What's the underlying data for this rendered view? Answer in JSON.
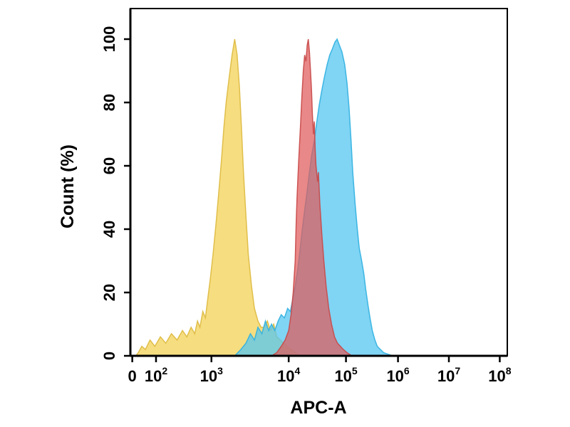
{
  "figure": {
    "background": "#ffffff",
    "axis_color": "#000000"
  },
  "chart_data": {
    "type": "area",
    "subtype": "flow-cytometry-histogram-overlay",
    "title": "",
    "xlabel": "APC-A",
    "ylabel": "Count  (%)",
    "x_scale": "biexponential-log",
    "ylim": [
      0,
      100
    ],
    "grid": false,
    "legend": "none",
    "y_ticks": [
      0,
      20,
      40,
      60,
      80,
      100
    ],
    "x_ticks": [
      {
        "label": "0",
        "value": 0,
        "frac": 0.005
      },
      {
        "base": "10",
        "exp": "2",
        "value": 100,
        "frac": 0.068
      },
      {
        "base": "10",
        "exp": "3",
        "value": 1000,
        "frac": 0.215
      },
      {
        "base": "10",
        "exp": "4",
        "value": 10000,
        "frac": 0.42
      },
      {
        "base": "10",
        "exp": "5",
        "value": 100000,
        "frac": 0.572
      },
      {
        "base": "10",
        "exp": "6",
        "value": 1000000,
        "frac": 0.71
      },
      {
        "base": "10",
        "exp": "7",
        "value": 10000000,
        "frac": 0.845
      },
      {
        "base": "10",
        "exp": "8",
        "value": 100000000,
        "frac": 0.98
      }
    ],
    "series": [
      {
        "name": "yellow-histogram",
        "peak_x": 2000,
        "fill": "#F3D45C",
        "stroke": "#DDB93E",
        "opacity": 0.78,
        "points": [
          [
            15,
            0
          ],
          [
            25,
            1
          ],
          [
            40,
            3
          ],
          [
            55,
            2
          ],
          [
            75,
            5
          ],
          [
            95,
            3
          ],
          [
            120,
            6
          ],
          [
            150,
            4
          ],
          [
            190,
            7
          ],
          [
            240,
            5
          ],
          [
            300,
            8
          ],
          [
            360,
            6
          ],
          [
            430,
            9
          ],
          [
            500,
            7
          ],
          [
            560,
            11
          ],
          [
            620,
            9
          ],
          [
            700,
            14
          ],
          [
            780,
            12
          ],
          [
            860,
            18
          ],
          [
            950,
            24
          ],
          [
            1050,
            32
          ],
          [
            1150,
            42
          ],
          [
            1250,
            52
          ],
          [
            1350,
            62
          ],
          [
            1450,
            72
          ],
          [
            1550,
            80
          ],
          [
            1700,
            88
          ],
          [
            1850,
            95
          ],
          [
            2000,
            100
          ],
          [
            2150,
            95
          ],
          [
            2300,
            85
          ],
          [
            2450,
            72
          ],
          [
            2600,
            58
          ],
          [
            2800,
            44
          ],
          [
            3000,
            32
          ],
          [
            3300,
            22
          ],
          [
            3600,
            15
          ],
          [
            4000,
            11
          ],
          [
            4400,
            9
          ],
          [
            4800,
            9
          ],
          [
            5300,
            11
          ],
          [
            5800,
            8
          ],
          [
            6400,
            10
          ],
          [
            7000,
            6
          ],
          [
            7800,
            5
          ],
          [
            8600,
            4
          ],
          [
            9500,
            3
          ],
          [
            11000,
            2
          ],
          [
            13000,
            1
          ],
          [
            16000,
            0
          ]
        ]
      },
      {
        "name": "blue-histogram",
        "peak_x": 70000,
        "fill": "#55C6F0",
        "stroke": "#2FB0E0",
        "opacity": 0.75,
        "points": [
          [
            2000,
            0
          ],
          [
            2400,
            2
          ],
          [
            2800,
            4
          ],
          [
            3200,
            7
          ],
          [
            3600,
            5
          ],
          [
            4000,
            9
          ],
          [
            4500,
            7
          ],
          [
            5000,
            11
          ],
          [
            5500,
            8
          ],
          [
            6000,
            10
          ],
          [
            6600,
            8
          ],
          [
            7300,
            11
          ],
          [
            8000,
            13
          ],
          [
            8800,
            12
          ],
          [
            9700,
            15
          ],
          [
            10700,
            14
          ],
          [
            11800,
            18
          ],
          [
            13000,
            22
          ],
          [
            14300,
            27
          ],
          [
            15700,
            33
          ],
          [
            17300,
            40
          ],
          [
            19000,
            46
          ],
          [
            21000,
            52
          ],
          [
            23000,
            58
          ],
          [
            25000,
            63
          ],
          [
            28000,
            68
          ],
          [
            31000,
            74
          ],
          [
            34000,
            79
          ],
          [
            38000,
            84
          ],
          [
            42000,
            88
          ],
          [
            47000,
            92
          ],
          [
            52000,
            95
          ],
          [
            58000,
            97
          ],
          [
            64000,
            99
          ],
          [
            70000,
            100
          ],
          [
            77000,
            98
          ],
          [
            85000,
            96
          ],
          [
            95000,
            92
          ],
          [
            105000,
            86
          ],
          [
            115000,
            78
          ],
          [
            125000,
            68
          ],
          [
            135000,
            58
          ],
          [
            150000,
            48
          ],
          [
            165000,
            40
          ],
          [
            180000,
            34
          ],
          [
            200000,
            30
          ],
          [
            220000,
            26
          ],
          [
            240000,
            21
          ],
          [
            265000,
            16
          ],
          [
            290000,
            12
          ],
          [
            320000,
            8
          ],
          [
            360000,
            5
          ],
          [
            400000,
            3
          ],
          [
            460000,
            2
          ],
          [
            530000,
            1
          ],
          [
            650000,
            0.5
          ],
          [
            800000,
            0
          ]
        ]
      },
      {
        "name": "red-histogram",
        "peak_x": 22000,
        "fill": "#E15A5A",
        "stroke": "#C84848",
        "opacity": 0.72,
        "points": [
          [
            6000,
            0
          ],
          [
            7000,
            1
          ],
          [
            8000,
            3
          ],
          [
            9000,
            5
          ],
          [
            10000,
            8
          ],
          [
            11000,
            13
          ],
          [
            12000,
            20
          ],
          [
            13000,
            30
          ],
          [
            13500,
            42
          ],
          [
            14000,
            50
          ],
          [
            15000,
            62
          ],
          [
            16000,
            72
          ],
          [
            17000,
            82
          ],
          [
            18000,
            90
          ],
          [
            19000,
            95
          ],
          [
            20000,
            93
          ],
          [
            21000,
            98
          ],
          [
            22000,
            100
          ],
          [
            23000,
            96
          ],
          [
            24000,
            90
          ],
          [
            25000,
            84
          ],
          [
            26000,
            76
          ],
          [
            27000,
            70
          ],
          [
            28000,
            74
          ],
          [
            29000,
            65
          ],
          [
            30000,
            60
          ],
          [
            32000,
            55
          ],
          [
            33000,
            58
          ],
          [
            35000,
            48
          ],
          [
            38000,
            38
          ],
          [
            41000,
            30
          ],
          [
            45000,
            22
          ],
          [
            50000,
            15
          ],
          [
            56000,
            10
          ],
          [
            63000,
            6
          ],
          [
            71000,
            4
          ],
          [
            80000,
            3
          ],
          [
            90000,
            2
          ],
          [
            105000,
            1
          ],
          [
            130000,
            0
          ]
        ]
      }
    ]
  }
}
